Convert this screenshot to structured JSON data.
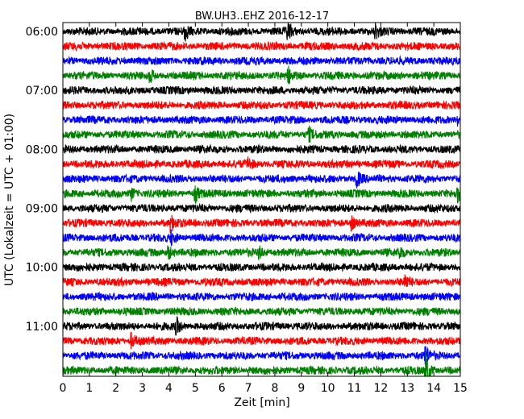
{
  "chart_data": {
    "type": "line",
    "title": "BW.UH3..EHZ 2016-12-17",
    "xlabel": "Zeit  [min]",
    "ylabel": "UTC (Lokalzeit = UTC + 01:00)",
    "xlim": [
      0,
      15
    ],
    "x_ticks": [
      0,
      1,
      2,
      3,
      4,
      5,
      6,
      7,
      8,
      9,
      10,
      11,
      12,
      13,
      14,
      15
    ],
    "y_tick_labels": [
      "06:00",
      "07:00",
      "08:00",
      "09:00",
      "10:00",
      "11:00"
    ],
    "trace_interval_min": 15,
    "first_trace_start": "06:00",
    "trace_count": 24,
    "series_colors": [
      "#000000",
      "#ff0000",
      "#0000ff",
      "#008000"
    ],
    "grid": false,
    "events": [
      {
        "trace": 0,
        "minute": 4.6,
        "strength": 1.6
      },
      {
        "trace": 0,
        "minute": 8.5,
        "strength": 1.5
      },
      {
        "trace": 0,
        "minute": 11.8,
        "strength": 1.2
      },
      {
        "trace": 3,
        "minute": 8.5,
        "strength": 1.4
      },
      {
        "trace": 3,
        "minute": 3.3,
        "strength": 1.0
      },
      {
        "trace": 6,
        "minute": 14.9,
        "strength": 1.2
      },
      {
        "trace": 7,
        "minute": 9.3,
        "strength": 1.0
      },
      {
        "trace": 9,
        "minute": 7.0,
        "strength": 1.0
      },
      {
        "trace": 10,
        "minute": 11.1,
        "strength": 1.4
      },
      {
        "trace": 11,
        "minute": 5.0,
        "strength": 1.3
      },
      {
        "trace": 11,
        "minute": 14.9,
        "strength": 1.3
      },
      {
        "trace": 11,
        "minute": 2.6,
        "strength": 1.0
      },
      {
        "trace": 13,
        "minute": 4.1,
        "strength": 1.2
      },
      {
        "trace": 13,
        "minute": 10.9,
        "strength": 1.1
      },
      {
        "trace": 14,
        "minute": 4.1,
        "strength": 1.0
      },
      {
        "trace": 15,
        "minute": 4.0,
        "strength": 1.1
      },
      {
        "trace": 15,
        "minute": 7.4,
        "strength": 1.0
      },
      {
        "trace": 15,
        "minute": 12.7,
        "strength": 1.0
      },
      {
        "trace": 17,
        "minute": 12.9,
        "strength": 1.3
      },
      {
        "trace": 20,
        "minute": 4.3,
        "strength": 1.2
      },
      {
        "trace": 21,
        "minute": 2.6,
        "strength": 1.2
      },
      {
        "trace": 23,
        "minute": 13.7,
        "strength": 3.2
      },
      {
        "trace": 22,
        "minute": 13.7,
        "strength": 1.5
      }
    ]
  }
}
